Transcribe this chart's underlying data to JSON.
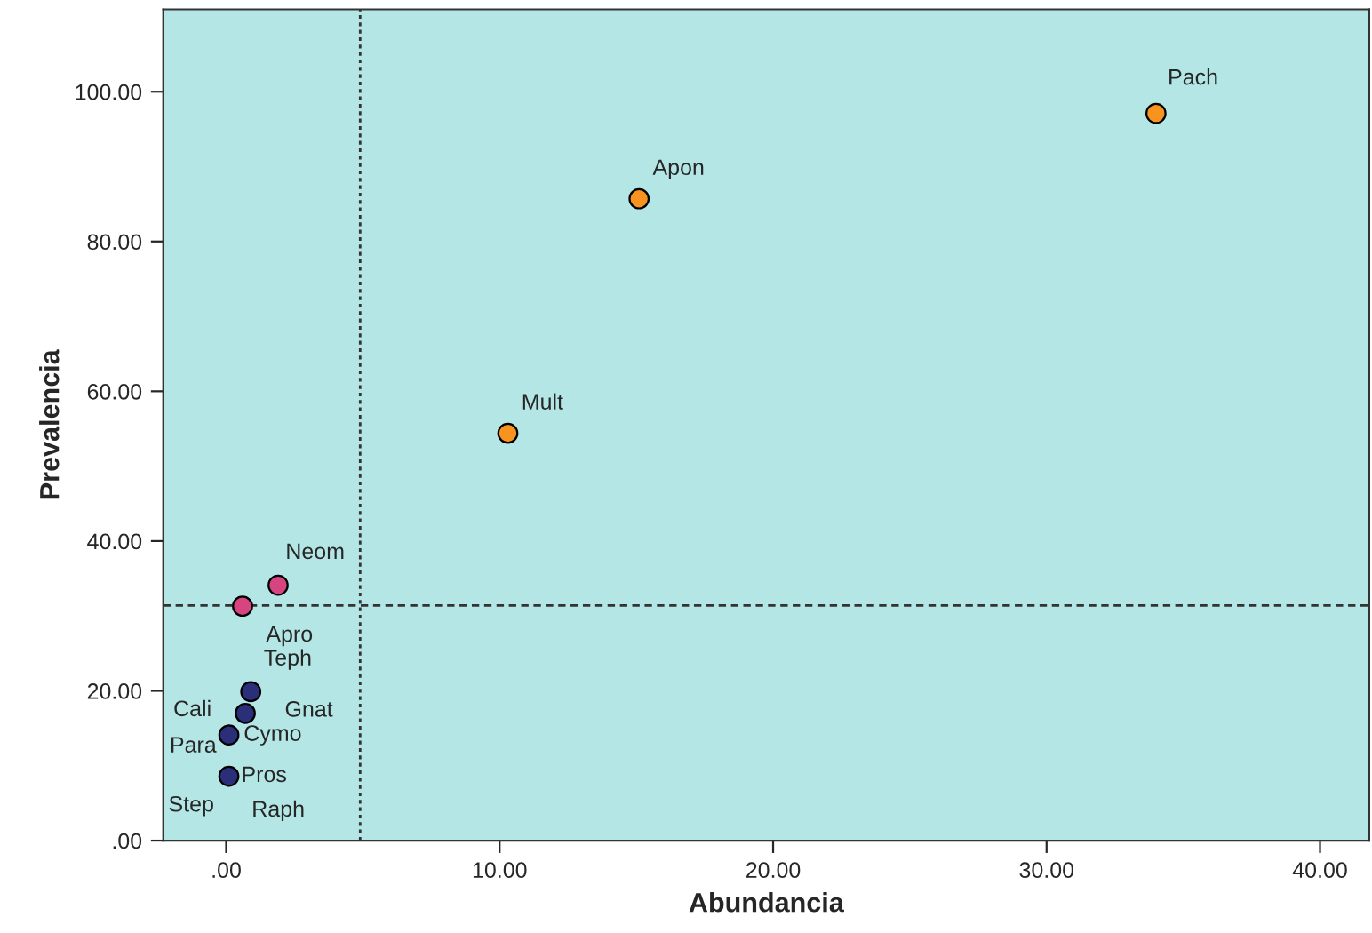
{
  "chart_data": {
    "type": "scatter",
    "xlabel": "Abundancia",
    "ylabel": "Prevalencia",
    "x": [
      34.0,
      15.1,
      10.3,
      1.9,
      0.6,
      0.9,
      0.7,
      0.1,
      0.1
    ],
    "values": [
      97.1,
      85.7,
      54.4,
      34.1,
      31.3,
      19.9,
      17.0,
      14.1,
      8.6
    ],
    "colors": [
      "#f7931e",
      "#f7931e",
      "#f7931e",
      "#d6457f",
      "#d6457f",
      "#2b2f7a",
      "#2b2f7a",
      "#2b2f7a",
      "#2b2f7a"
    ],
    "annotations": [
      {
        "text": "Pach",
        "x": 34.0,
        "y": 97.1
      },
      {
        "text": "Apon",
        "x": 15.1,
        "y": 85.7
      },
      {
        "text": "Mult",
        "x": 10.3,
        "y": 54.4
      },
      {
        "text": "Neom",
        "x": 1.9,
        "y": 34.1
      },
      {
        "text": "Apro",
        "x": 0.6,
        "y": 31.3
      },
      {
        "text": "Teph",
        "x": 0.9,
        "y": 19.9
      },
      {
        "text": "Gnat",
        "x": 0.7,
        "y": 17.0
      },
      {
        "text": "Cali",
        "x": 0.1,
        "y": 14.1
      },
      {
        "text": "Cymo",
        "x": 0.1,
        "y": 14.1
      },
      {
        "text": "Para",
        "x": 0.1,
        "y": 8.6
      },
      {
        "text": "Pros",
        "x": 0.1,
        "y": 8.6
      },
      {
        "text": "Step",
        "x": 0.1,
        "y": 8.6
      },
      {
        "text": "Raph",
        "x": 0.1,
        "y": 8.6
      }
    ],
    "ref_lines": [
      {
        "axis": "x",
        "value": 4.9,
        "line_style": "dotted"
      },
      {
        "axis": "y",
        "value": 31.4,
        "line_style": "dashed"
      }
    ],
    "xlim": [
      -2.3,
      41.8
    ],
    "ylim": [
      0,
      111
    ],
    "xticks": [
      {
        "value": 0,
        "label": ".00"
      },
      {
        "value": 10,
        "label": "10.00"
      },
      {
        "value": 20,
        "label": "20.00"
      },
      {
        "value": 30,
        "label": "30.00"
      },
      {
        "value": 40,
        "label": "40.00"
      }
    ],
    "yticks": [
      {
        "value": 0,
        "label": ".00"
      },
      {
        "value": 20,
        "label": "20.00"
      },
      {
        "value": 40,
        "label": "40.00"
      },
      {
        "value": 60,
        "label": "60.00"
      },
      {
        "value": 80,
        "label": "80.00"
      },
      {
        "value": 100,
        "label": "100.00"
      }
    ],
    "marker": "circle",
    "grid": false,
    "legend": false
  }
}
